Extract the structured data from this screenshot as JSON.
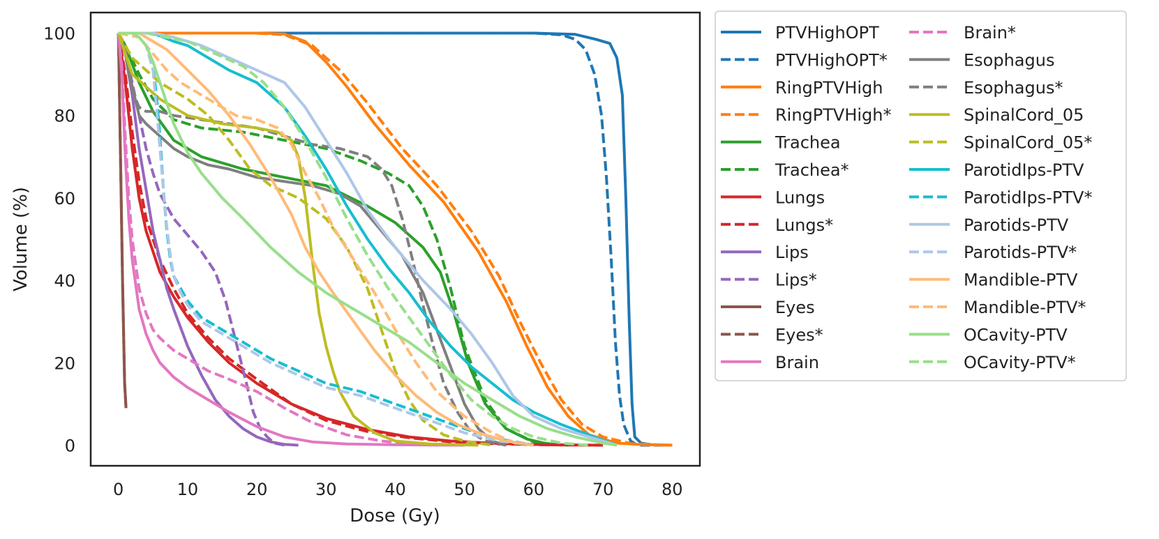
{
  "chart_data": {
    "type": "line",
    "title": "",
    "xlabel": "Dose (Gy)",
    "ylabel": "Volume (%)",
    "xlim": [
      -4,
      84
    ],
    "ylim": [
      -5,
      105
    ],
    "xticks": [
      0,
      10,
      20,
      30,
      40,
      50,
      60,
      70,
      80
    ],
    "yticks": [
      0,
      20,
      40,
      60,
      80,
      100
    ],
    "legend_position": "outside-right",
    "legend_columns": 2,
    "series": [
      {
        "name": "PTVHighOPT",
        "color": "#1f77b4",
        "dash": "solid",
        "x": [
          0,
          10,
          30,
          60,
          66,
          69,
          71,
          72,
          72.8,
          73.3,
          73.8,
          74.2,
          74.6,
          75.5,
          77,
          80
        ],
        "y": [
          100,
          100,
          100,
          100,
          99.7,
          98.5,
          97.5,
          94,
          85,
          60,
          30,
          10,
          2,
          0.5,
          0.1,
          0
        ]
      },
      {
        "name": "PTVHighOPT*",
        "color": "#1f77b4",
        "dash": "dashed",
        "x": [
          0,
          10,
          30,
          60,
          64,
          66,
          67.5,
          68.8,
          69.8,
          70.5,
          71.2,
          71.8,
          72.4,
          73,
          74,
          75,
          80
        ],
        "y": [
          100,
          100,
          100,
          100,
          99.6,
          98.5,
          96,
          90,
          80,
          65,
          45,
          25,
          12,
          5,
          1,
          0,
          0
        ]
      },
      {
        "name": "RingPTVHigh",
        "color": "#ff7f0e",
        "dash": "solid",
        "x": [
          0,
          10,
          20,
          24,
          27,
          30,
          33,
          37,
          42,
          47,
          52,
          56,
          59,
          62,
          65,
          68,
          72,
          76,
          80
        ],
        "y": [
          100,
          100,
          100,
          99.8,
          98,
          93,
          87,
          78,
          68,
          59,
          47,
          35,
          24,
          14,
          7,
          2.5,
          0.5,
          0.1,
          0
        ]
      },
      {
        "name": "RingPTVHigh*",
        "color": "#ff7f0e",
        "dash": "dashed",
        "x": [
          0,
          10,
          20,
          24,
          28,
          32,
          36,
          41,
          46,
          51,
          55,
          58,
          61,
          64,
          67,
          70,
          74,
          78,
          80
        ],
        "y": [
          100,
          100,
          100,
          99.6,
          97,
          91,
          83,
          72,
          63,
          52,
          41,
          30,
          20,
          11,
          5,
          2,
          0.4,
          0.1,
          0
        ]
      },
      {
        "name": "Trachea",
        "color": "#2ca02c",
        "dash": "solid",
        "x": [
          0,
          1,
          3,
          5,
          8,
          12,
          18,
          24,
          30,
          36,
          40,
          44,
          46.5,
          48.5,
          50.5,
          53,
          56,
          59,
          62,
          65
        ],
        "y": [
          100,
          97,
          88,
          81,
          74,
          70,
          67,
          65,
          63,
          58,
          54,
          48,
          42,
          32,
          20,
          10,
          4,
          1.5,
          0.3,
          0
        ]
      },
      {
        "name": "Trachea*",
        "color": "#2ca02c",
        "dash": "dashed",
        "x": [
          0,
          1,
          3,
          5,
          8,
          12,
          18,
          24,
          30,
          35,
          39,
          42,
          44,
          46,
          48,
          50,
          53,
          56,
          60,
          64
        ],
        "y": [
          100,
          97,
          90,
          84,
          79,
          77,
          76,
          74,
          72,
          69,
          66,
          63,
          58,
          50,
          38,
          24,
          11,
          4,
          0.8,
          0
        ]
      },
      {
        "name": "Lungs",
        "color": "#d62728",
        "dash": "solid",
        "x": [
          0,
          1,
          2,
          3,
          4,
          6,
          8,
          10,
          13,
          16,
          20,
          25,
          30,
          36,
          42,
          48,
          55,
          62,
          70
        ],
        "y": [
          100,
          88,
          72,
          60,
          52,
          42,
          36,
          31,
          25,
          20,
          15,
          10,
          6.5,
          3.8,
          2,
          1,
          0.4,
          0.1,
          0
        ]
      },
      {
        "name": "Lungs*",
        "color": "#d62728",
        "dash": "dashed",
        "x": [
          0,
          1,
          2,
          3,
          4,
          6,
          8,
          10,
          13,
          16,
          20,
          25,
          30,
          36,
          42,
          48,
          55,
          62,
          70
        ],
        "y": [
          100,
          90,
          76,
          64,
          55,
          45,
          38,
          32,
          26,
          21,
          16,
          10,
          6,
          3.3,
          1.8,
          0.8,
          0.3,
          0.1,
          0
        ]
      },
      {
        "name": "Lips",
        "color": "#9467bd",
        "dash": "solid",
        "x": [
          0,
          1,
          2,
          3,
          4,
          5,
          6,
          7,
          8,
          10,
          12,
          14,
          16,
          18,
          20,
          22,
          24,
          26
        ],
        "y": [
          100,
          95,
          85,
          72,
          62,
          52,
          45,
          38,
          33,
          24,
          17,
          11,
          7,
          4,
          2,
          0.8,
          0.2,
          0
        ]
      },
      {
        "name": "Lips*",
        "color": "#9467bd",
        "dash": "dashed",
        "x": [
          0,
          1,
          2,
          3,
          4,
          5,
          6,
          7,
          8,
          10,
          12,
          14,
          15.5,
          17,
          18.5,
          19.5,
          20.5,
          21.5,
          22.5,
          24
        ],
        "y": [
          100,
          95,
          88,
          80,
          72,
          66,
          61,
          58,
          55,
          51,
          47,
          42,
          35,
          25,
          15,
          8,
          4,
          2,
          0.5,
          0
        ]
      },
      {
        "name": "Eyes",
        "color": "#8c564b",
        "dash": "solid",
        "x": [
          0,
          0.3,
          0.6,
          0.9,
          1.1
        ],
        "y": [
          100,
          70,
          40,
          15,
          9
        ]
      },
      {
        "name": "Eyes*",
        "color": "#8c564b",
        "dash": "dashed",
        "x": [
          0,
          0.3,
          0.6,
          0.9,
          1.1
        ],
        "y": [
          100,
          70,
          40,
          15,
          9
        ]
      },
      {
        "name": "Brain",
        "color": "#e377c2",
        "dash": "solid",
        "x": [
          0,
          0.5,
          1,
          1.5,
          2,
          3,
          4,
          5,
          6,
          8,
          10,
          13,
          16,
          20,
          24,
          28,
          33,
          40,
          50
        ],
        "y": [
          100,
          90,
          70,
          55,
          45,
          33,
          27,
          23,
          20,
          16.5,
          14,
          11,
          8,
          4.5,
          2,
          0.8,
          0.3,
          0.1,
          0
        ]
      },
      {
        "name": "Brain*",
        "color": "#e377c2",
        "dash": "dashed",
        "x": [
          0,
          0.5,
          1,
          1.5,
          2,
          3,
          4,
          5,
          6,
          8,
          10,
          13,
          16,
          20,
          24,
          28,
          33,
          38,
          43,
          50
        ],
        "y": [
          100,
          92,
          75,
          60,
          50,
          38,
          32,
          28,
          26,
          23,
          21,
          18,
          16,
          13,
          9,
          5.5,
          2.5,
          1,
          0.2,
          0
        ]
      },
      {
        "name": "Esophagus",
        "color": "#7f7f7f",
        "dash": "solid",
        "x": [
          0,
          1,
          2,
          3,
          4,
          6,
          8,
          10,
          13,
          16,
          20,
          24,
          28,
          32,
          35,
          38,
          41,
          44,
          46,
          48,
          50,
          52,
          54,
          56
        ],
        "y": [
          100,
          96,
          87,
          80,
          78,
          75,
          72,
          70,
          68,
          67,
          65,
          64,
          63,
          61,
          58,
          52,
          46,
          37,
          28,
          19,
          10,
          4,
          1,
          0
        ]
      },
      {
        "name": "Esophagus*",
        "color": "#7f7f7f",
        "dash": "dashed",
        "x": [
          0,
          1,
          2,
          3,
          4,
          6,
          8,
          12,
          16,
          20,
          24,
          28,
          32,
          34,
          36,
          38,
          39.5,
          41,
          42.5,
          44,
          45.5,
          47,
          49,
          51,
          53,
          56
        ],
        "y": [
          100,
          95,
          86,
          82,
          81,
          81,
          80,
          79,
          78,
          77,
          75,
          73,
          72,
          71,
          70,
          67,
          63,
          55,
          45,
          34,
          24,
          15,
          8,
          3,
          1,
          0
        ]
      },
      {
        "name": "SpinalCord_05",
        "color": "#bcbd22",
        "dash": "solid",
        "x": [
          0,
          1,
          2,
          4,
          6,
          10,
          15,
          20,
          23,
          25,
          26,
          27,
          28,
          29,
          30,
          31,
          32,
          34,
          37,
          40,
          45,
          52
        ],
        "y": [
          100,
          95,
          90,
          87,
          84,
          80,
          78,
          77,
          76,
          74,
          70,
          60,
          45,
          32,
          24,
          18,
          13,
          7,
          3,
          1,
          0.3,
          0
        ]
      },
      {
        "name": "SpinalCord_05*",
        "color": "#bcbd22",
        "dash": "dashed",
        "x": [
          0,
          1,
          2,
          4,
          6,
          8,
          10,
          13,
          16,
          19,
          22,
          26,
          30,
          33,
          36,
          38,
          40,
          42,
          44,
          47,
          50,
          54
        ],
        "y": [
          100,
          97,
          94,
          91,
          88,
          86,
          84,
          80,
          74,
          67,
          63,
          60,
          55,
          48,
          38,
          28,
          18,
          11,
          6,
          2.5,
          1,
          0
        ]
      },
      {
        "name": "ParotidIps-PTV",
        "color": "#17becf",
        "dash": "solid",
        "x": [
          0,
          5,
          8,
          10,
          13,
          16,
          20,
          24,
          27,
          30,
          33,
          36,
          39,
          42,
          45,
          48,
          51,
          54,
          57,
          60,
          64,
          68,
          72
        ],
        "y": [
          100,
          100,
          98,
          97,
          94,
          91,
          88,
          82,
          75,
          67,
          58,
          50,
          43,
          37,
          30,
          24,
          19,
          15,
          11,
          8,
          5,
          2.5,
          0
        ]
      },
      {
        "name": "ParotidIps-PTV*",
        "color": "#17becf",
        "dash": "dashed",
        "x": [
          0,
          2,
          3,
          4,
          5,
          5.5,
          6,
          6.5,
          7,
          7.5,
          8,
          9,
          10,
          12,
          15,
          18,
          22,
          26,
          30,
          35,
          40,
          45,
          50,
          55,
          60
        ],
        "y": [
          100,
          100,
          99,
          97,
          92,
          85,
          75,
          62,
          52,
          45,
          41,
          38,
          35,
          31,
          28,
          25,
          21,
          18,
          15,
          13,
          10,
          7,
          4,
          1.5,
          0
        ]
      },
      {
        "name": "Parotids-PTV",
        "color": "#aec7e8",
        "dash": "solid",
        "x": [
          0,
          5,
          8,
          12,
          16,
          20,
          24,
          27,
          30,
          33,
          36,
          40,
          44,
          48,
          51,
          54,
          57,
          60,
          64,
          68,
          72
        ],
        "y": [
          100,
          100,
          99,
          97,
          94,
          91,
          88,
          82,
          74,
          66,
          57,
          48,
          40,
          33,
          27,
          20,
          12,
          7,
          4,
          2,
          0
        ]
      },
      {
        "name": "Parotids-PTV*",
        "color": "#aec7e8",
        "dash": "dashed",
        "x": [
          0,
          2,
          3,
          4,
          5,
          5.5,
          6,
          6.5,
          7,
          7.5,
          8,
          9,
          10,
          12,
          15,
          18,
          22,
          26,
          30,
          35,
          40,
          45,
          50,
          55,
          60
        ],
        "y": [
          100,
          100,
          99,
          97,
          91,
          82,
          72,
          62,
          53,
          46,
          41,
          37,
          34,
          30,
          27,
          24,
          20,
          17,
          14,
          12,
          9,
          6,
          3,
          1,
          0
        ]
      },
      {
        "name": "Mandible-PTV",
        "color": "#ffbb78",
        "dash": "solid",
        "x": [
          0,
          3,
          5,
          7,
          10,
          13,
          16,
          19,
          22,
          25,
          27,
          29,
          31,
          34,
          37,
          40,
          43,
          46,
          49,
          52,
          56,
          60
        ],
        "y": [
          100,
          100,
          98,
          96,
          91,
          86,
          80,
          73,
          65,
          56,
          48,
          42,
          37,
          30,
          23,
          17,
          12,
          8,
          5,
          3,
          1,
          0
        ]
      },
      {
        "name": "Mandible-PTV*",
        "color": "#ffbb78",
        "dash": "dashed",
        "x": [
          0,
          3,
          5,
          7,
          9,
          11,
          14,
          17,
          20,
          23,
          25,
          27,
          29,
          31,
          34,
          37,
          40,
          43,
          46,
          50,
          54,
          58
        ],
        "y": [
          100,
          99,
          95,
          91,
          88,
          86,
          83,
          80,
          79,
          77,
          73,
          66,
          60,
          53,
          45,
          37,
          28,
          20,
          13,
          7,
          3,
          0
        ]
      },
      {
        "name": "OCavity-PTV",
        "color": "#98df8a",
        "dash": "solid",
        "x": [
          0,
          2,
          3,
          4,
          5,
          6,
          7,
          8,
          10,
          12,
          15,
          18,
          22,
          26,
          30,
          34,
          38,
          42,
          46,
          50,
          54,
          58,
          62,
          66,
          70,
          72
        ],
        "y": [
          100,
          100,
          99,
          97,
          93,
          88,
          83,
          78,
          71,
          66,
          60,
          55,
          48,
          42,
          37,
          33,
          29,
          25,
          20,
          15,
          11,
          7,
          4,
          2,
          0.5,
          0
        ]
      },
      {
        "name": "OCavity-PTV*",
        "color": "#98df8a",
        "dash": "dashed",
        "x": [
          0,
          4,
          7,
          10,
          14,
          18,
          21,
          24,
          27,
          30,
          33,
          36,
          39,
          42,
          45,
          48,
          51,
          54,
          57,
          60,
          64,
          68
        ],
        "y": [
          100,
          100,
          99,
          98,
          95,
          92,
          88,
          82,
          74,
          65,
          55,
          46,
          38,
          31,
          24,
          17,
          11,
          7,
          4,
          2,
          0.5,
          0
        ]
      }
    ]
  }
}
